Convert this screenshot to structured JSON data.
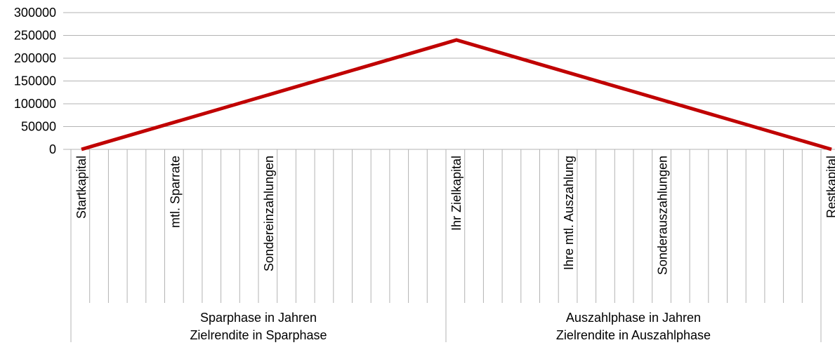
{
  "chart_data": {
    "type": "line",
    "ylim": [
      0,
      300000
    ],
    "yticks": [
      0,
      50000,
      100000,
      150000,
      200000,
      250000,
      300000
    ],
    "ytick_labels": [
      "0",
      "50000",
      "100000",
      "150000",
      "200000",
      "250000",
      "300000"
    ],
    "grid": true,
    "line_color": "#c00000",
    "category_count": 41,
    "category_labels": [
      {
        "index": 0,
        "text": "Startkapital"
      },
      {
        "index": 5,
        "text": "mtl. Sparrate"
      },
      {
        "index": 10,
        "text": "Sondereinzahlungen"
      },
      {
        "index": 20,
        "text": "Ihr Zielkapital"
      },
      {
        "index": 26,
        "text": "Ihre mtl. Auszahlung"
      },
      {
        "index": 31,
        "text": "Sonderauszahlungen"
      },
      {
        "index": 40,
        "text": "Restkapital"
      }
    ],
    "groups": [
      {
        "from": 0,
        "to": 20,
        "line1": "Sparphase in Jahren",
        "line2": "Zielrendite in Sparphase"
      },
      {
        "from": 20,
        "to": 40,
        "line1": "Auszahlphase in Jahren",
        "line2": "Zielrendite in Auszahlphase"
      }
    ],
    "series": [
      {
        "points": [
          [
            0,
            0
          ],
          [
            20,
            240000
          ],
          [
            40,
            0
          ]
        ]
      }
    ]
  }
}
